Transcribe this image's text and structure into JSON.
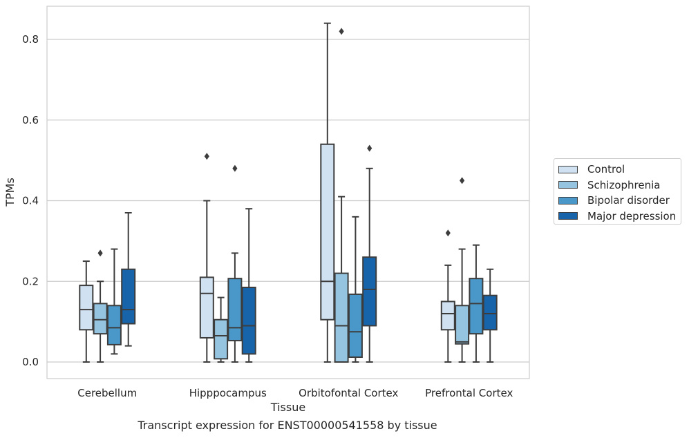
{
  "caption": "Transcript expression for ENST00000541558 by tissue",
  "chart_data": {
    "type": "box",
    "xlabel": "Tissue",
    "ylabel": "TPMs",
    "ylim": [
      -0.04,
      0.885
    ],
    "yticks": [
      0.0,
      0.2,
      0.4,
      0.6,
      0.8
    ],
    "ytick_labels": [
      "0.0",
      "0.2",
      "0.4",
      "0.6",
      "0.8"
    ],
    "grid": "horizontal",
    "legend_placement": "right",
    "categories": [
      "Cerebellum",
      "Hipppocampus",
      "Orbitofontal Cortex",
      "Prefrontal Cortex"
    ],
    "series": [
      {
        "name": "Control",
        "color": "#d0e1f2",
        "boxes": [
          {
            "min": 0.0,
            "q1": 0.08,
            "median": 0.13,
            "q3": 0.19,
            "max": 0.25,
            "outliers": []
          },
          {
            "min": 0.0,
            "q1": 0.06,
            "median": 0.17,
            "q3": 0.21,
            "max": 0.4,
            "outliers": [
              0.51
            ]
          },
          {
            "min": 0.0,
            "q1": 0.105,
            "median": 0.2,
            "q3": 0.54,
            "max": 0.84,
            "outliers": []
          },
          {
            "min": 0.0,
            "q1": 0.08,
            "median": 0.12,
            "q3": 0.15,
            "max": 0.24,
            "outliers": [
              0.32
            ]
          }
        ]
      },
      {
        "name": "Schizophrenia",
        "color": "#94c4df",
        "boxes": [
          {
            "min": 0.0,
            "q1": 0.07,
            "median": 0.105,
            "q3": 0.145,
            "max": 0.2,
            "outliers": [
              0.27
            ]
          },
          {
            "min": 0.0,
            "q1": 0.008,
            "median": 0.065,
            "q3": 0.105,
            "max": 0.16,
            "outliers": []
          },
          {
            "min": 0.0,
            "q1": 0.0,
            "median": 0.09,
            "q3": 0.22,
            "max": 0.41,
            "outliers": [
              0.82
            ]
          },
          {
            "min": 0.0,
            "q1": 0.045,
            "median": 0.05,
            "q3": 0.14,
            "max": 0.28,
            "outliers": [
              0.45
            ]
          }
        ]
      },
      {
        "name": "Bipolar disorder",
        "color": "#4a98c9",
        "boxes": [
          {
            "min": 0.02,
            "q1": 0.043,
            "median": 0.085,
            "q3": 0.14,
            "max": 0.28,
            "outliers": []
          },
          {
            "min": 0.0,
            "q1": 0.053,
            "median": 0.085,
            "q3": 0.207,
            "max": 0.27,
            "outliers": [
              0.48
            ]
          },
          {
            "min": 0.0,
            "q1": 0.012,
            "median": 0.075,
            "q3": 0.168,
            "max": 0.36,
            "outliers": []
          },
          {
            "min": 0.0,
            "q1": 0.07,
            "median": 0.145,
            "q3": 0.207,
            "max": 0.29,
            "outliers": []
          }
        ]
      },
      {
        "name": "Major depression",
        "color": "#1764ab",
        "boxes": [
          {
            "min": 0.04,
            "q1": 0.095,
            "median": 0.13,
            "q3": 0.23,
            "max": 0.37,
            "outliers": []
          },
          {
            "min": 0.0,
            "q1": 0.02,
            "median": 0.09,
            "q3": 0.185,
            "max": 0.38,
            "outliers": []
          },
          {
            "min": 0.0,
            "q1": 0.09,
            "median": 0.18,
            "q3": 0.26,
            "max": 0.48,
            "outliers": [
              0.53
            ]
          },
          {
            "min": 0.0,
            "q1": 0.08,
            "median": 0.12,
            "q3": 0.165,
            "max": 0.23,
            "outliers": []
          }
        ]
      }
    ]
  }
}
